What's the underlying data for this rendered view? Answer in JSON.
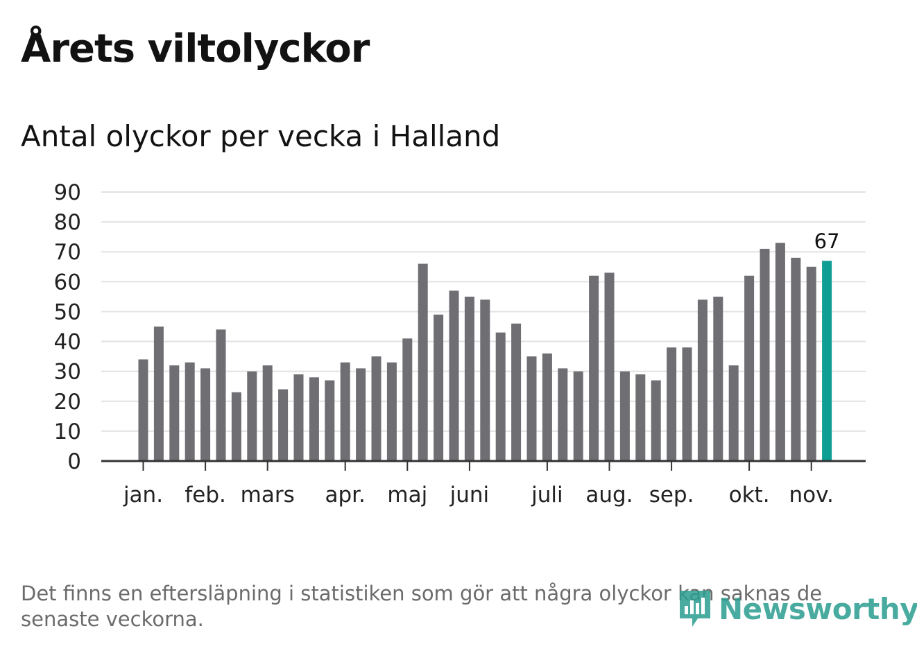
{
  "header": {
    "title": "Årets viltolyckor",
    "subtitle": "Antal olyckor per vecka i Halland"
  },
  "chart_data": {
    "type": "bar",
    "ylim": [
      0,
      90
    ],
    "y_ticks": [
      0,
      10,
      20,
      30,
      40,
      50,
      60,
      70,
      80,
      90
    ],
    "values": [
      34,
      45,
      32,
      33,
      31,
      44,
      23,
      30,
      32,
      24,
      29,
      28,
      27,
      33,
      31,
      35,
      33,
      41,
      66,
      49,
      57,
      55,
      54,
      43,
      46,
      35,
      36,
      31,
      30,
      62,
      63,
      30,
      29,
      27,
      38,
      38,
      54,
      55,
      32,
      62,
      71,
      73,
      68,
      65,
      67
    ],
    "month_labels": [
      {
        "label": "jan.",
        "week_index": 0
      },
      {
        "label": "feb.",
        "week_index": 4
      },
      {
        "label": "mars",
        "week_index": 8
      },
      {
        "label": "apr.",
        "week_index": 13
      },
      {
        "label": "maj",
        "week_index": 17
      },
      {
        "label": "juni",
        "week_index": 21
      },
      {
        "label": "juli",
        "week_index": 26
      },
      {
        "label": "aug.",
        "week_index": 30
      },
      {
        "label": "sep.",
        "week_index": 34
      },
      {
        "label": "okt.",
        "week_index": 39
      },
      {
        "label": "nov.",
        "week_index": 43
      }
    ],
    "highlight_index": 44,
    "highlight_label": "67",
    "bar_color": "#6e6e73",
    "highlight_color": "#0f9e94",
    "grid_color": "#e2e2e2"
  },
  "footer": {
    "note": "Det finns en eftersläpning i statistiken som gör att några olyckor kan saknas de senaste veckorna.",
    "brand": "Newsworthy"
  }
}
